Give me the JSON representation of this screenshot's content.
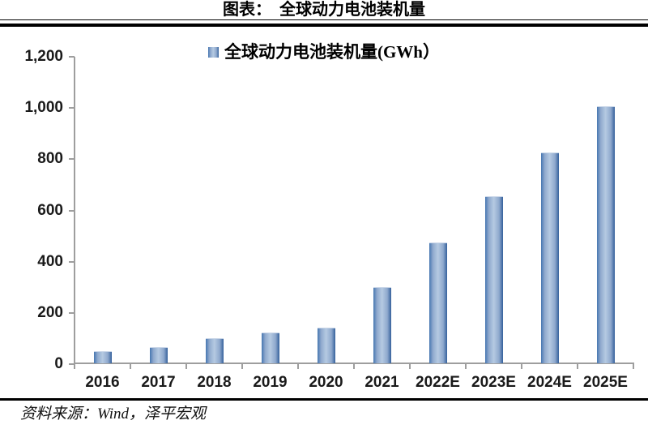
{
  "header": {
    "title": "图表：　全球动力电池装机量"
  },
  "footer": {
    "source": "资料来源：Wind，泽平宏观"
  },
  "colors": {
    "bar_edge": "#4676b1",
    "bar_edge_dark": "#35619c",
    "bar_light": "#b5cae2",
    "axis": "#9e9e9e",
    "rule": "#000000",
    "text": "#1a1a1a"
  },
  "chart_data": {
    "type": "bar",
    "title": "全球动力电池装机量",
    "legend": "全球动力电池装机量(GWh）",
    "legend_position": "top",
    "grid": false,
    "categories": [
      "2016",
      "2017",
      "2018",
      "2019",
      "2020",
      "2021",
      "2022E",
      "2023E",
      "2024E",
      "2025E"
    ],
    "values": [
      43,
      59,
      95,
      116,
      136,
      295,
      470,
      650,
      820,
      1000
    ],
    "xlabel": "",
    "ylabel": "",
    "ylim": [
      0,
      1200
    ],
    "yticks": [
      0,
      200,
      400,
      600,
      800,
      1000,
      1200
    ],
    "ytick_labels": [
      "0",
      "200",
      "400",
      "600",
      "800",
      "1,000",
      "1,200"
    ]
  }
}
